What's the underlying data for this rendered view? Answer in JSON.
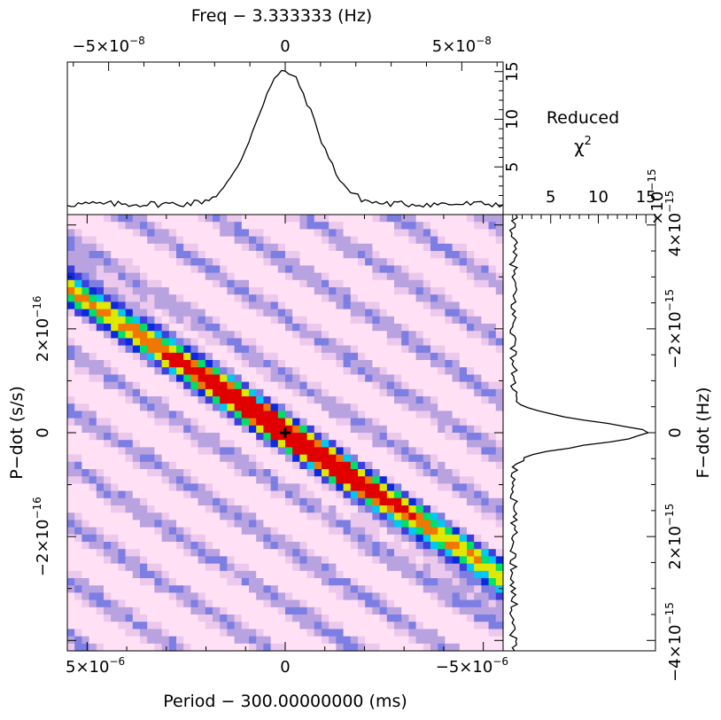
{
  "chart_data": [
    {
      "type": "heatmap",
      "name": "period-pdot-search",
      "xlabel": "Period − 300.00000000 (ms)",
      "ylabel": "P−dot (s/s)",
      "x_unit_exp": -6,
      "y_unit_exp": -16,
      "xlim": [
        5.5,
        -5.5
      ],
      "ylim": [
        4.2,
        -4.2
      ],
      "x_ticks": [
        {
          "value": 5,
          "mantissa": "5×10",
          "exp": "−6"
        },
        {
          "value": 0,
          "mantissa": "0",
          "exp": ""
        },
        {
          "value": -5,
          "mantissa": "−5×10",
          "exp": "−6"
        }
      ],
      "y_ticks": [
        {
          "value": -2,
          "mantissa": "−2×10",
          "exp": "−16"
        },
        {
          "value": 0,
          "mantissa": "0",
          "exp": ""
        },
        {
          "value": 2,
          "mantissa": "2×10",
          "exp": "−16"
        }
      ],
      "best_fit": {
        "x": 0,
        "y": 0
      },
      "ridge_slope_ratio": 0.7,
      "colormap": [
        "#ffe0f4",
        "#ecc8ec",
        "#b8a2e0",
        "#7d7ee4",
        "#3f3fe0",
        "#0a2ae0",
        "#00c8f0",
        "#00e068",
        "#e0e800",
        "#f07800",
        "#e00000"
      ]
    },
    {
      "type": "line",
      "name": "frequency-profile",
      "xlabel": "Freq − 3.333333 (Hz)",
      "ylabel": "Reduced",
      "ylabel_symbol": "χ",
      "ylabel_sup": "2",
      "x_unit_exp": -8,
      "xlim": [
        -6.17,
        6.17
      ],
      "ylim": [
        0,
        16
      ],
      "x_ticks": [
        {
          "value": -5,
          "mantissa": "−5×10",
          "exp": "−8"
        },
        {
          "value": 0,
          "mantissa": "0",
          "exp": ""
        },
        {
          "value": 5,
          "mantissa": "5×10",
          "exp": "−8"
        }
      ],
      "y_ticks": [
        {
          "value": 5,
          "label": "5"
        },
        {
          "value": 10,
          "label": "10"
        },
        {
          "value": 15,
          "label": "15"
        }
      ],
      "peak": {
        "x": 0,
        "y": 15
      },
      "width": 0.85,
      "baseline": 1.1
    },
    {
      "type": "line",
      "name": "fdot-profile",
      "ylabel": "F−dot (Hz)",
      "y_unit_exp": -15,
      "ylim": [
        -4.2,
        4.2
      ],
      "xlim": [
        0,
        16
      ],
      "x_ticks": [
        {
          "value": 5,
          "label": "5"
        },
        {
          "value": 10,
          "label": "10"
        },
        {
          "value": 15,
          "label": "15"
        }
      ],
      "x_ticks_exp": "−15",
      "y_ticks": [
        {
          "value": 4,
          "mantissa": "4×10",
          "exp": "−15"
        },
        {
          "value": 2,
          "mantissa": "2×10",
          "exp": "−15"
        },
        {
          "value": 0,
          "mantissa": "0",
          "exp": ""
        },
        {
          "value": -2,
          "mantissa": "−2×10",
          "exp": "−15"
        },
        {
          "value": -4,
          "mantissa": "−4×10",
          "exp": "−15"
        }
      ],
      "peak": {
        "y": 0,
        "x": 15
      },
      "width": 0.22,
      "baseline": 1.1
    }
  ]
}
